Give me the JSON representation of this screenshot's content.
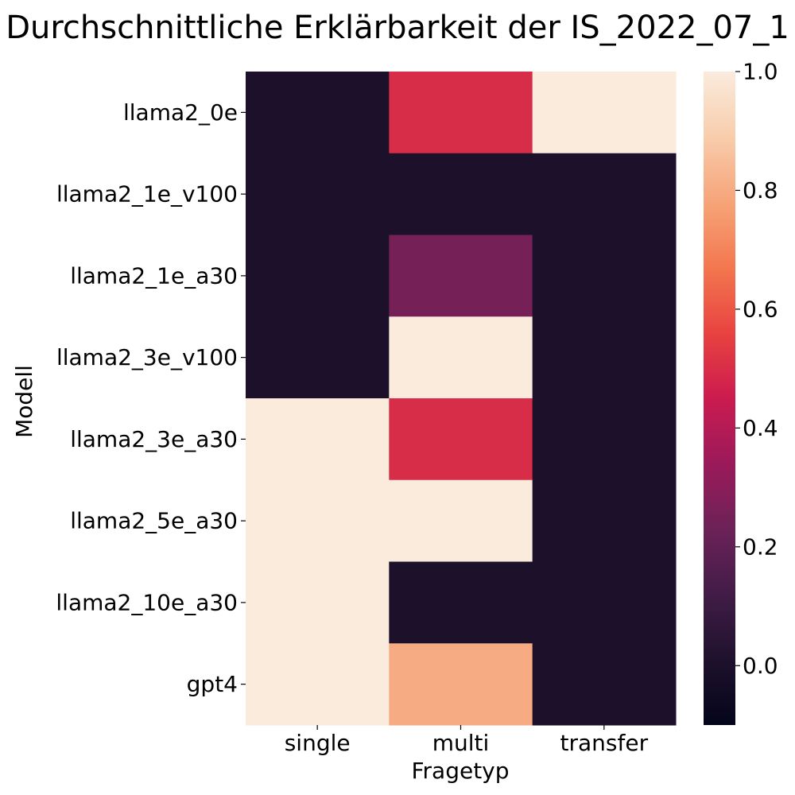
{
  "chart_data": {
    "type": "heatmap",
    "title": "Durchschnittliche Erklärbarkeit der IS_2022_07_1",
    "xlabel": "Fragetyp",
    "ylabel": "Modell",
    "x_categories": [
      "single",
      "multi",
      "transfer"
    ],
    "y_categories": [
      "llama2_0e",
      "llama2_1e_v100",
      "llama2_1e_a30",
      "llama2_3e_v100",
      "llama2_3e_a30",
      "llama2_5e_a30",
      "llama2_10e_a30",
      "gpt4"
    ],
    "values": [
      [
        0.0,
        0.5,
        1.0
      ],
      [
        0.0,
        0.0,
        0.0
      ],
      [
        0.0,
        0.25,
        0.0
      ],
      [
        0.0,
        1.0,
        0.0
      ],
      [
        1.0,
        0.5,
        0.0
      ],
      [
        1.0,
        1.0,
        0.0
      ],
      [
        1.0,
        0.0,
        0.0
      ],
      [
        1.0,
        0.8,
        0.0
      ]
    ],
    "colorscale": "rocket",
    "colorbar": {
      "range": [
        -0.1,
        1.0
      ],
      "ticks": [
        0.0,
        0.2,
        0.4,
        0.6,
        0.8,
        1.0
      ],
      "tick_labels": [
        "0.0",
        "0.2",
        "0.4",
        "0.6",
        "0.8",
        "1.0"
      ]
    }
  }
}
